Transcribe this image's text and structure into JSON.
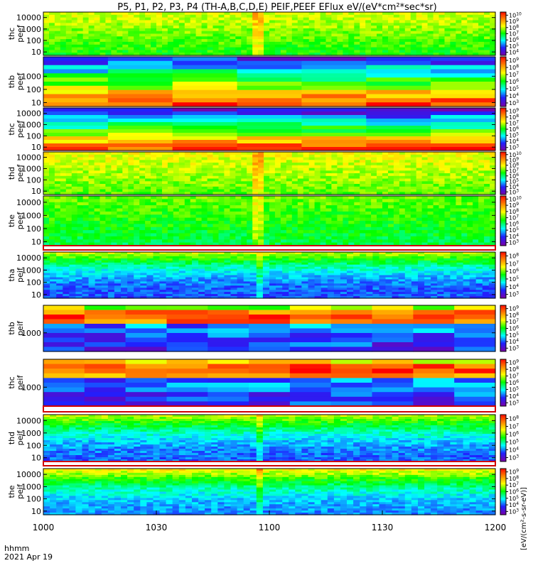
{
  "title": "P5, P1, P2, P3, P4 (TH-A,B,C,D,E) PEIF,PEEF EFlux eV/(eV*cm²*sec*sr)",
  "footer": {
    "line1": "hhmm",
    "line2": "2021 Apr 19"
  },
  "x_ticks": [
    "1000",
    "1030",
    "1100",
    "1130",
    "1200"
  ],
  "colorbar_label": "[eV/(cm²-s-sr-eV)]",
  "chart_data": {
    "type": "heatmap",
    "title": "P5, P1, P2, P3, P4 (TH-A,B,C,D,E) PEIF,PEEF EFlux eV/(eV*cm²*sec*sr)",
    "x_range": [
      "1000",
      "1200"
    ],
    "x_ticks": [
      "1000",
      "1030",
      "1100",
      "1130",
      "1200"
    ],
    "x_unit": "hhmm",
    "date": "2021 Apr 19",
    "y_scale": "log",
    "z_scale": "log",
    "colormap": [
      "#7700aa",
      "#2020ff",
      "#00ffff",
      "#00ff00",
      "#ffff00",
      "#ff8000",
      "#ff0000"
    ],
    "panels": [
      {
        "ylabel": [
          "thc",
          "peef"
        ],
        "yticks": [
          "10",
          "100",
          "1000",
          "10000"
        ],
        "ylim": [
          5,
          30000
        ],
        "cb_exp": [
          4,
          5,
          6,
          7,
          8,
          9,
          10
        ],
        "spike_at": "1057"
      },
      {
        "ylabel": [
          "thb",
          "peef"
        ],
        "yticks": [
          "10",
          "100",
          "1000"
        ],
        "ylim": [
          5,
          30000
        ],
        "cb_exp": [
          3,
          4,
          5,
          6,
          7,
          8,
          9
        ]
      },
      {
        "ylabel": [
          "thc",
          "peef"
        ],
        "yticks": [
          "10",
          "100",
          "1000",
          "10000"
        ],
        "ylim": [
          5,
          30000
        ],
        "cb_exp": [
          3,
          4,
          5,
          6,
          7,
          8,
          9
        ]
      },
      {
        "ylabel": [
          "thd",
          "peef"
        ],
        "yticks": [
          "10",
          "100",
          "1000",
          "10000"
        ],
        "ylim": [
          5,
          30000
        ],
        "cb_exp": [
          3,
          4,
          5,
          6,
          7,
          8,
          9,
          10
        ],
        "spike_at": "1057"
      },
      {
        "ylabel": [
          "the",
          "peef"
        ],
        "yticks": [
          "10",
          "100",
          "1000",
          "10000"
        ],
        "ylim": [
          5,
          30000
        ],
        "cb_exp": [
          3,
          4,
          5,
          6,
          7,
          8,
          9,
          10
        ],
        "spike_at": "1057"
      },
      {
        "ylabel": [
          "tha",
          "peif"
        ],
        "yticks": [
          "10",
          "100",
          "1000",
          "10000"
        ],
        "ylim": [
          5,
          30000
        ],
        "cb_exp": [
          3,
          4,
          5,
          6,
          7,
          8
        ],
        "spike_at": "1057"
      },
      {
        "ylabel": [
          "thb",
          "peif"
        ],
        "yticks": [
          "1000"
        ],
        "ylim": [
          100,
          30000
        ],
        "cb_exp": [
          3,
          4,
          5,
          6,
          7,
          8,
          9
        ]
      },
      {
        "ylabel": [
          "thc",
          "peif"
        ],
        "yticks": [
          "1000"
        ],
        "ylim": [
          100,
          30000
        ],
        "cb_exp": [
          3,
          4,
          5,
          6,
          7,
          8,
          9
        ]
      },
      {
        "ylabel": [
          "thd",
          "peif"
        ],
        "yticks": [
          "10",
          "100",
          "1000",
          "10000"
        ],
        "ylim": [
          5,
          30000
        ],
        "cb_exp": [
          3,
          4,
          5,
          6,
          7,
          8
        ],
        "spike_at": "1057"
      },
      {
        "ylabel": [
          "the",
          "peif"
        ],
        "yticks": [
          "10",
          "100",
          "1000",
          "10000"
        ],
        "ylim": [
          5,
          30000
        ],
        "cb_exp": [
          3,
          4,
          5,
          6,
          7,
          8,
          9
        ],
        "spike_at": "1057"
      }
    ]
  }
}
